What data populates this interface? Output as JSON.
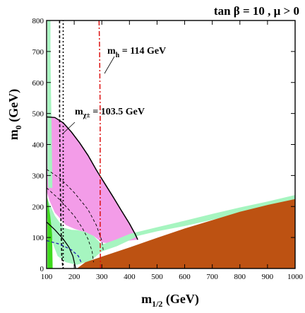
{
  "chart_data": {
    "type": "area",
    "title": "tan β = 10 ,  μ > 0",
    "xlabel": "m",
    "xlabel_sub": "1/2",
    "xlabel_unit": " (GeV)",
    "ylabel": "m",
    "ylabel_sub": "0",
    "ylabel_unit": " (GeV)",
    "xlim": [
      100,
      1000
    ],
    "ylim": [
      0,
      800
    ],
    "xticks": [
      100,
      200,
      300,
      400,
      500,
      600,
      700,
      800,
      900,
      1000
    ],
    "yticks": [
      0,
      100,
      200,
      300,
      400,
      500,
      600,
      700,
      800
    ],
    "colors": {
      "pink": "#f39ce8",
      "light_green": "#a6f5c0",
      "brown": "#bd5212",
      "bright_green": "#3fd91d",
      "red": "#dd1111",
      "blue": "#1f1fb2"
    },
    "regions": {
      "pink": [
        [
          100,
          490
        ],
        [
          130,
          488
        ],
        [
          160,
          470
        ],
        [
          190,
          440
        ],
        [
          220,
          405
        ],
        [
          250,
          365
        ],
        [
          280,
          318
        ],
        [
          310,
          275
        ],
        [
          340,
          232
        ],
        [
          370,
          188
        ],
        [
          400,
          145
        ],
        [
          420,
          112
        ],
        [
          430,
          93
        ],
        [
          380,
          88
        ],
        [
          330,
          81
        ],
        [
          300,
          84
        ],
        [
          270,
          105
        ],
        [
          230,
          120
        ],
        [
          200,
          128
        ],
        [
          170,
          140
        ],
        [
          150,
          160
        ],
        [
          130,
          180
        ],
        [
          110,
          220
        ],
        [
          100,
          250
        ]
      ],
      "light_green_upper": [
        [
          103,
          800
        ],
        [
          114,
          800
        ],
        [
          114,
          680
        ],
        [
          116,
          560
        ],
        [
          118,
          470
        ],
        [
          119,
          400
        ],
        [
          120,
          340
        ],
        [
          121,
          260
        ],
        [
          106,
          260
        ],
        [
          103,
          340
        ]
      ],
      "light_green_band": [
        [
          300,
          55
        ],
        [
          355,
          72
        ],
        [
          400,
          91
        ],
        [
          430,
          105
        ],
        [
          500,
          120
        ],
        [
          600,
          137
        ],
        [
          700,
          157
        ],
        [
          800,
          178
        ],
        [
          900,
          199
        ],
        [
          1000,
          220
        ],
        [
          1000,
          237
        ],
        [
          900,
          216
        ],
        [
          800,
          197
        ],
        [
          700,
          176
        ],
        [
          600,
          154
        ],
        [
          500,
          133
        ],
        [
          430,
          118
        ],
        [
          400,
          111
        ],
        [
          350,
          93
        ],
        [
          300,
          77
        ],
        [
          270,
          105
        ],
        [
          240,
          118
        ],
        [
          210,
          124
        ],
        [
          190,
          125
        ],
        [
          160,
          132
        ],
        [
          150,
          145
        ],
        [
          130,
          170
        ],
        [
          100,
          230
        ],
        [
          100,
          170
        ],
        [
          110,
          130
        ],
        [
          125,
          75
        ],
        [
          140,
          40
        ],
        [
          170,
          20
        ],
        [
          210,
          12
        ],
        [
          260,
          25
        ]
      ],
      "brown": [
        [
          210,
          0
        ],
        [
          240,
          20
        ],
        [
          300,
          38
        ],
        [
          400,
          68
        ],
        [
          500,
          99
        ],
        [
          600,
          129
        ],
        [
          700,
          156
        ],
        [
          800,
          183
        ],
        [
          900,
          205
        ],
        [
          1000,
          224
        ],
        [
          1000,
          0
        ]
      ],
      "bright_green": [
        [
          103,
          0
        ],
        [
          103,
          230
        ],
        [
          108,
          200
        ],
        [
          113,
          170
        ],
        [
          117,
          140
        ],
        [
          120,
          110
        ],
        [
          122,
          0
        ]
      ]
    },
    "curves": {
      "chargino_boundary": [
        [
          100,
          489
        ],
        [
          130,
          487
        ],
        [
          160,
          470
        ],
        [
          190,
          440
        ],
        [
          220,
          405
        ],
        [
          250,
          365
        ],
        [
          280,
          318
        ],
        [
          310,
          275
        ],
        [
          340,
          232
        ],
        [
          370,
          188
        ],
        [
          400,
          145
        ],
        [
          420,
          112
        ],
        [
          430,
          93
        ]
      ],
      "lower_boundary": [
        [
          100,
          150
        ],
        [
          130,
          125
        ],
        [
          160,
          95
        ],
        [
          180,
          70
        ],
        [
          195,
          40
        ],
        [
          203,
          10
        ],
        [
          205,
          0
        ]
      ],
      "black_dashed_vertical": [
        [
          147,
          800
        ],
        [
          147,
          500
        ],
        [
          149,
          300
        ],
        [
          152,
          150
        ],
        [
          155,
          40
        ],
        [
          159,
          0
        ]
      ],
      "black_dotted_vertical": [
        [
          160,
          0
        ],
        [
          160,
          800
        ]
      ],
      "red_dashdot": [
        [
          290,
          800
        ],
        [
          292,
          700
        ],
        [
          293,
          600
        ],
        [
          294,
          500
        ],
        [
          294,
          400
        ],
        [
          294,
          300
        ],
        [
          294,
          200
        ],
        [
          294,
          100
        ],
        [
          295,
          0
        ]
      ],
      "dashed_1": [
        [
          100,
          320
        ],
        [
          150,
          290
        ],
        [
          200,
          245
        ],
        [
          250,
          190
        ],
        [
          280,
          140
        ],
        [
          300,
          90
        ],
        [
          305,
          60
        ]
      ],
      "dashed_2": [
        [
          100,
          260
        ],
        [
          150,
          220
        ],
        [
          200,
          170
        ],
        [
          230,
          130
        ],
        [
          250,
          95
        ],
        [
          265,
          55
        ],
        [
          270,
          20
        ]
      ],
      "blue_dashed": [
        [
          100,
          90
        ],
        [
          150,
          78
        ],
        [
          190,
          60
        ],
        [
          215,
          40
        ],
        [
          225,
          20
        ]
      ]
    },
    "annotations": [
      {
        "text": "m",
        "sub": "h",
        "rest": "  = 114 GeV",
        "points_to": [
          290,
          600
        ]
      },
      {
        "text": "m",
        "sup": "χ±",
        "rest": " = 103.5 GeV",
        "points_to": [
          155,
          440
        ]
      }
    ]
  }
}
